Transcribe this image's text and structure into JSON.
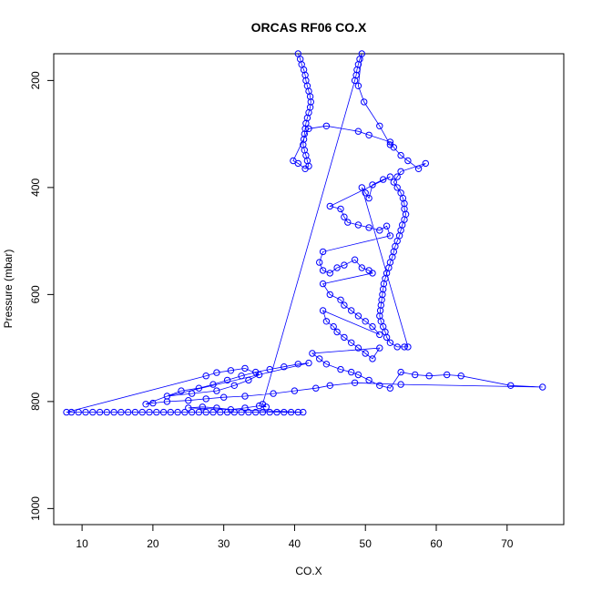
{
  "chart_data": {
    "type": "scatter",
    "title": "ORCAS RF06 CO.X",
    "xlabel": "CO.X",
    "ylabel": "Pressure (mbar)",
    "xlim": [
      6,
      78
    ],
    "ylim": [
      1030,
      150
    ],
    "y_axis_reversed": true,
    "x_ticks": [
      10,
      20,
      30,
      40,
      50,
      60,
      70
    ],
    "y_ticks": [
      200,
      400,
      600,
      800,
      1000
    ],
    "grid": false,
    "legend": "none",
    "series": [
      {
        "color": "#0000ff",
        "marker": "open-circle",
        "connected": true,
        "points": [
          [
            40.5,
            150
          ],
          [
            40.8,
            160
          ],
          [
            41.0,
            170
          ],
          [
            41.3,
            180
          ],
          [
            41.5,
            190
          ],
          [
            41.6,
            200
          ],
          [
            41.8,
            210
          ],
          [
            42.0,
            220
          ],
          [
            42.2,
            230
          ],
          [
            42.3,
            240
          ],
          [
            42.2,
            250
          ],
          [
            42.0,
            260
          ],
          [
            41.8,
            270
          ],
          [
            41.6,
            280
          ],
          [
            41.5,
            290
          ],
          [
            41.4,
            300
          ],
          [
            41.3,
            310
          ],
          [
            41.2,
            320
          ],
          [
            41.4,
            330
          ],
          [
            41.6,
            340
          ],
          [
            41.8,
            350
          ],
          [
            42.0,
            360
          ],
          [
            41.5,
            365
          ],
          [
            40.5,
            355
          ],
          [
            39.8,
            350
          ],
          [
            42.0,
            290
          ],
          [
            44.5,
            285
          ],
          [
            49.0,
            295
          ],
          [
            50.5,
            302
          ],
          [
            53.5,
            315
          ],
          [
            54.0,
            325
          ],
          [
            55.0,
            340
          ],
          [
            56.0,
            350
          ],
          [
            57.5,
            365
          ],
          [
            58.5,
            355
          ],
          [
            55.0,
            370
          ],
          [
            54.5,
            380
          ],
          [
            54.0,
            390
          ],
          [
            54.5,
            400
          ],
          [
            55.0,
            410
          ],
          [
            55.3,
            420
          ],
          [
            55.5,
            430
          ],
          [
            55.5,
            440
          ],
          [
            55.7,
            450
          ],
          [
            55.5,
            460
          ],
          [
            55.2,
            470
          ],
          [
            55.0,
            480
          ],
          [
            54.8,
            490
          ],
          [
            54.5,
            500
          ],
          [
            54.2,
            510
          ],
          [
            54.0,
            520
          ],
          [
            53.8,
            530
          ],
          [
            53.5,
            540
          ],
          [
            53.3,
            550
          ],
          [
            53.0,
            560
          ],
          [
            52.8,
            570
          ],
          [
            52.6,
            580
          ],
          [
            52.5,
            590
          ],
          [
            52.4,
            600
          ],
          [
            52.3,
            610
          ],
          [
            52.2,
            620
          ],
          [
            52.1,
            630
          ],
          [
            52.0,
            640
          ],
          [
            52.2,
            650
          ],
          [
            52.5,
            660
          ],
          [
            52.8,
            670
          ],
          [
            53.0,
            680
          ],
          [
            53.5,
            690
          ],
          [
            54.5,
            698
          ],
          [
            55.5,
            698
          ],
          [
            56.0,
            698
          ],
          [
            49.5,
            400
          ],
          [
            50.0,
            410
          ],
          [
            50.5,
            420
          ],
          [
            51.0,
            395
          ],
          [
            52.5,
            385
          ],
          [
            53.5,
            380
          ],
          [
            45.0,
            435
          ],
          [
            46.5,
            440
          ],
          [
            47.0,
            455
          ],
          [
            47.5,
            465
          ],
          [
            49.0,
            470
          ],
          [
            50.5,
            475
          ],
          [
            52.0,
            480
          ],
          [
            53.0,
            472
          ],
          [
            53.5,
            490
          ],
          [
            44.0,
            520
          ],
          [
            43.5,
            540
          ],
          [
            44.0,
            555
          ],
          [
            45.0,
            560
          ],
          [
            46.0,
            550
          ],
          [
            47.0,
            545
          ],
          [
            48.5,
            535
          ],
          [
            49.5,
            550
          ],
          [
            50.5,
            555
          ],
          [
            51.0,
            560
          ],
          [
            44.0,
            580
          ],
          [
            45.0,
            600
          ],
          [
            46.5,
            610
          ],
          [
            47.0,
            620
          ],
          [
            48.0,
            630
          ],
          [
            49.0,
            640
          ],
          [
            50.0,
            650
          ],
          [
            51.0,
            660
          ],
          [
            52.0,
            675
          ],
          [
            44.0,
            630
          ],
          [
            44.5,
            650
          ],
          [
            45.5,
            660
          ],
          [
            46.0,
            670
          ],
          [
            47.0,
            680
          ],
          [
            48.0,
            690
          ],
          [
            49.0,
            700
          ],
          [
            50.0,
            710
          ],
          [
            51.0,
            720
          ],
          [
            52.0,
            700
          ],
          [
            42.5,
            710
          ],
          [
            43.5,
            720
          ],
          [
            44.5,
            730
          ],
          [
            46.5,
            740
          ],
          [
            48.0,
            745
          ],
          [
            49.0,
            750
          ],
          [
            50.5,
            760
          ],
          [
            52.0,
            770
          ],
          [
            53.5,
            775
          ],
          [
            55.0,
            745
          ],
          [
            57.0,
            750
          ],
          [
            59.0,
            752
          ],
          [
            61.5,
            750
          ],
          [
            63.5,
            752
          ],
          [
            70.5,
            770
          ],
          [
            75.0,
            773
          ],
          [
            55.0,
            768
          ],
          [
            48.5,
            765
          ],
          [
            45.0,
            770
          ],
          [
            43.0,
            775
          ],
          [
            40.0,
            780
          ],
          [
            37.0,
            785
          ],
          [
            33.0,
            790
          ],
          [
            30.0,
            792
          ],
          [
            27.5,
            795
          ],
          [
            25.0,
            798
          ],
          [
            22.0,
            800
          ],
          [
            20.0,
            803
          ],
          [
            19.0,
            805
          ],
          [
            24.0,
            780
          ],
          [
            26.5,
            775
          ],
          [
            28.5,
            768
          ],
          [
            30.5,
            760
          ],
          [
            32.5,
            752
          ],
          [
            34.5,
            745
          ],
          [
            36.5,
            740
          ],
          [
            38.5,
            735
          ],
          [
            40.5,
            730
          ],
          [
            42.0,
            728
          ],
          [
            22.0,
            790
          ],
          [
            25.5,
            785
          ],
          [
            29.0,
            780
          ],
          [
            31.5,
            770
          ],
          [
            33.5,
            760
          ],
          [
            35.0,
            750
          ],
          [
            33.0,
            738
          ],
          [
            31.0,
            742
          ],
          [
            29.0,
            746
          ],
          [
            27.5,
            752
          ],
          [
            7.8,
            820
          ],
          [
            8.5,
            820
          ],
          [
            9.5,
            820
          ],
          [
            10.5,
            820
          ],
          [
            11.5,
            820
          ],
          [
            12.5,
            820
          ],
          [
            13.5,
            820
          ],
          [
            14.5,
            820
          ],
          [
            15.5,
            820
          ],
          [
            16.5,
            820
          ],
          [
            17.5,
            820
          ],
          [
            18.5,
            820
          ],
          [
            19.5,
            820
          ],
          [
            20.5,
            820
          ],
          [
            21.5,
            820
          ],
          [
            22.5,
            820
          ],
          [
            23.5,
            820
          ],
          [
            24.5,
            820
          ],
          [
            25.5,
            820
          ],
          [
            26.5,
            820
          ],
          [
            27.5,
            820
          ],
          [
            28.5,
            820
          ],
          [
            29.5,
            820
          ],
          [
            30.5,
            820
          ],
          [
            31.5,
            820
          ],
          [
            32.5,
            820
          ],
          [
            33.5,
            820
          ],
          [
            34.5,
            820
          ],
          [
            35.5,
            820
          ],
          [
            36.5,
            820
          ],
          [
            37.5,
            820
          ],
          [
            38.5,
            820
          ],
          [
            39.5,
            820
          ],
          [
            40.5,
            820
          ],
          [
            41.2,
            820
          ],
          [
            25.0,
            812
          ],
          [
            27.0,
            810
          ],
          [
            29.0,
            812
          ],
          [
            31.0,
            815
          ],
          [
            33.0,
            812
          ],
          [
            35.0,
            808
          ],
          [
            36.0,
            810
          ],
          [
            35.5,
            805
          ],
          [
            48.5,
            200
          ],
          [
            48.7,
            190
          ],
          [
            48.8,
            180
          ],
          [
            49.0,
            170
          ],
          [
            49.2,
            160
          ],
          [
            49.5,
            150
          ],
          [
            49.0,
            210
          ],
          [
            49.8,
            240
          ],
          [
            52.0,
            285
          ],
          [
            53.5,
            320
          ]
        ]
      }
    ]
  }
}
